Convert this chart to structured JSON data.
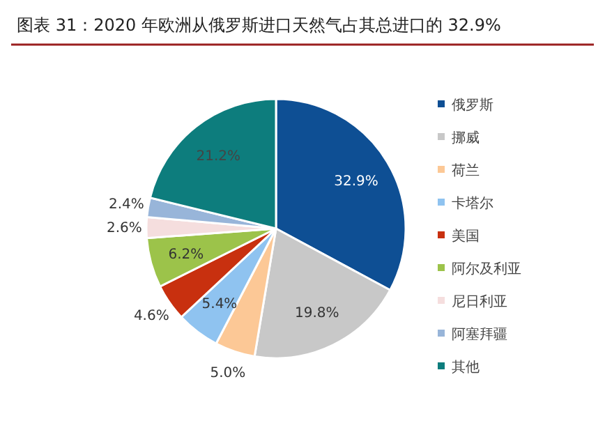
{
  "chart_data": {
    "type": "pie",
    "title": "图表 31：2020 年欧洲从俄罗斯进口天然气占其总进口的 32.9%",
    "categories": [
      "俄罗斯",
      "挪威",
      "荷兰",
      "卡塔尔",
      "美国",
      "阿尔及利亚",
      "尼日利亚",
      "阿塞拜疆",
      "其他"
    ],
    "values": [
      32.9,
      19.8,
      5.0,
      5.4,
      4.6,
      6.2,
      2.6,
      2.4,
      21.2
    ],
    "colors": [
      "#0e4f94",
      "#c8c8c8",
      "#fcc896",
      "#8fc3f0",
      "#c8300f",
      "#9cc34a",
      "#f5dede",
      "#98b5d9",
      "#0d7d7d"
    ],
    "value_labels": [
      "32.9%",
      "19.8%",
      "5.0%",
      "5.4%",
      "4.6%",
      "6.2%",
      "2.6%",
      "2.4%",
      "21.2%"
    ],
    "legend": "right"
  }
}
